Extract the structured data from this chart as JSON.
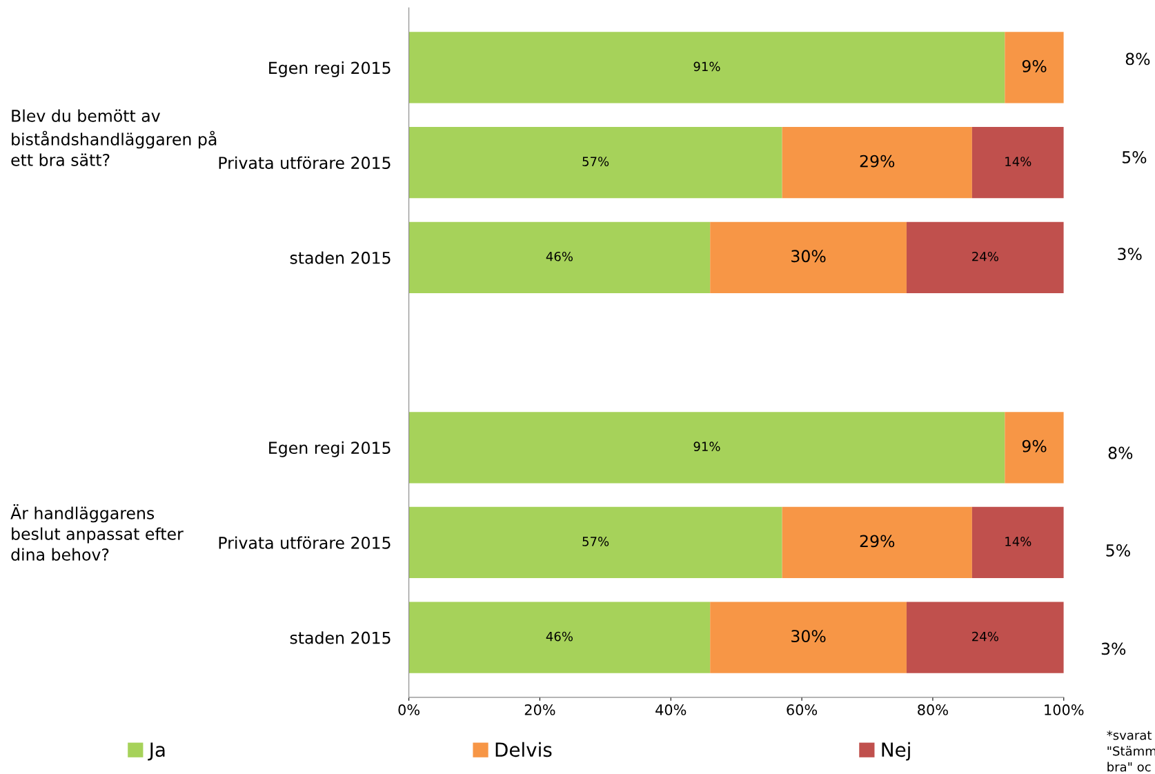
{
  "chart_data": {
    "type": "bar",
    "orientation": "horizontal",
    "stacked": true,
    "categories": [
      "Egen regi 2015",
      "Privata utförare 2015",
      "staden 2015",
      null,
      "Egen regi 2015",
      "Privata utförare 2015",
      "staden 2015"
    ],
    "series": [
      {
        "name": "Ja",
        "color": "#a6d25a",
        "values": [
          91,
          57,
          46,
          null,
          91,
          57,
          46
        ],
        "value_labels": [
          "91%",
          "57%",
          "46%",
          null,
          "91%",
          "57%",
          "46%"
        ]
      },
      {
        "name": "Delvis",
        "color": "#f79646",
        "values": [
          9,
          29,
          30,
          null,
          9,
          29,
          30
        ],
        "value_labels": [
          "9%",
          "29%",
          "30%",
          null,
          "9%",
          "29%",
          "30%"
        ]
      },
      {
        "name": "Nej",
        "color": "#c0504d",
        "values": [
          null,
          14,
          24,
          null,
          null,
          14,
          24
        ],
        "value_labels": [
          null,
          "14%",
          "24%",
          null,
          null,
          "14%",
          "24%"
        ]
      }
    ],
    "xlim": [
      0,
      100
    ],
    "xticks": [
      {
        "value": 0,
        "label": "0%"
      },
      {
        "value": 20,
        "label": "20%"
      },
      {
        "value": 40,
        "label": "40%"
      },
      {
        "value": 60,
        "label": "60%"
      },
      {
        "value": 80,
        "label": "80%"
      },
      {
        "value": 100,
        "label": "100%"
      }
    ],
    "grid": false,
    "legend": "bottom",
    "annotations": [
      "Blev du bemött av\nbiståndshandläggaren på\nett bra sätt?",
      "Är handläggarens\nbeslut anpassat efter\ndina behov?",
      "8%",
      "5%",
      "3%",
      "8%",
      "5%",
      "3%",
      "*svarat\n\"Stämm\nbra\" oc"
    ]
  }
}
